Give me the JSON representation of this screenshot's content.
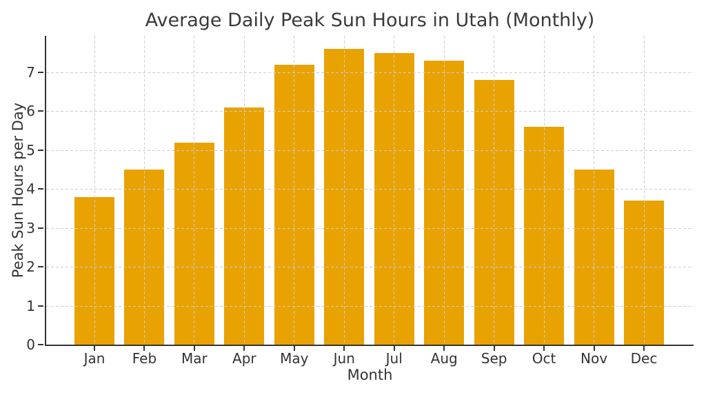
{
  "figure": {
    "background": "#ffffff"
  },
  "chart_data": {
    "type": "bar",
    "title": "Average Daily Peak Sun Hours in Utah (Monthly)",
    "xlabel": "Month",
    "ylabel": "Peak Sun Hours per Day",
    "categories": [
      "Jan",
      "Feb",
      "Mar",
      "Apr",
      "May",
      "Jun",
      "Jul",
      "Aug",
      "Sep",
      "Oct",
      "Nov",
      "Dec"
    ],
    "values": [
      3.8,
      4.5,
      5.2,
      6.1,
      7.2,
      7.6,
      7.5,
      7.3,
      6.8,
      5.6,
      4.5,
      3.7
    ],
    "ylim": [
      0,
      7.94
    ],
    "yticks": [
      0,
      1,
      2,
      3,
      4,
      5,
      6,
      7
    ],
    "grid": true,
    "grid_style": "dashed",
    "grid_above_bars": true,
    "legend": "none",
    "bar_color": "#e8a202",
    "grid_color": "#cdcdcd",
    "spine_color": "#333333",
    "text_color": "#333333",
    "title_color": "#3a3a3a"
  }
}
